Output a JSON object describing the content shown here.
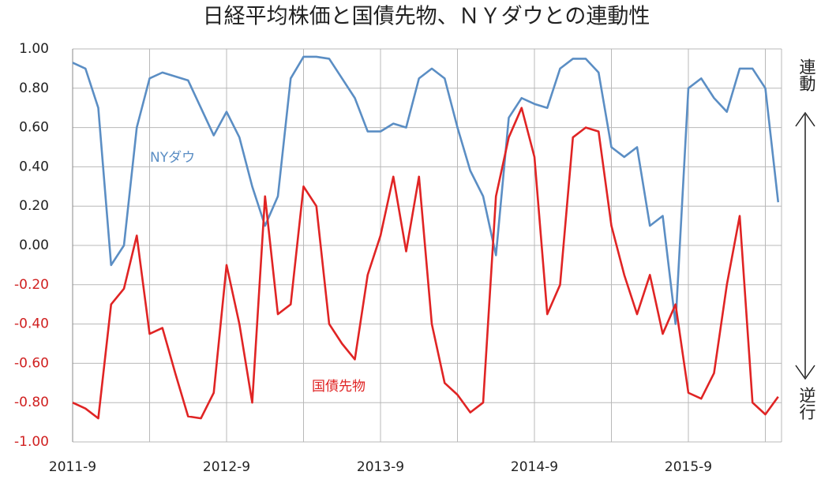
{
  "chart_data": {
    "type": "line",
    "title": "日経平均株価と国債先物、ＮＹダウとの連動性",
    "categories": [
      "2011-9",
      null,
      null,
      null,
      null,
      null,
      null,
      null,
      null,
      null,
      null,
      null,
      "2012-9",
      null,
      null,
      null,
      null,
      null,
      null,
      null,
      null,
      null,
      null,
      null,
      "2013-9",
      null,
      null,
      null,
      null,
      null,
      null,
      null,
      null,
      null,
      null,
      null,
      "2014-9",
      null,
      null,
      null,
      null,
      null,
      null,
      null,
      null,
      null,
      null,
      null,
      "2015-9",
      null,
      null,
      null,
      null,
      null,
      null,
      null
    ],
    "series": [
      {
        "name": "NYダウ",
        "color": "#5b8ec4",
        "values": [
          0.93,
          0.9,
          0.7,
          -0.1,
          0.0,
          0.6,
          0.85,
          0.88,
          0.86,
          0.84,
          0.7,
          0.56,
          0.68,
          0.55,
          0.3,
          0.1,
          0.25,
          0.85,
          0.96,
          0.96,
          0.95,
          0.85,
          0.75,
          0.58,
          0.58,
          0.62,
          0.6,
          0.85,
          0.9,
          0.85,
          0.6,
          0.38,
          0.25,
          -0.05,
          0.65,
          0.75,
          0.72,
          0.7,
          0.9,
          0.95,
          0.95,
          0.88,
          0.5,
          0.45,
          0.5,
          0.1,
          0.15,
          -0.4,
          0.8,
          0.85,
          0.75,
          0.68,
          0.9,
          0.9,
          0.8,
          0.22
        ]
      },
      {
        "name": "国債先物",
        "color": "#e02424",
        "values": [
          -0.8,
          -0.83,
          -0.88,
          -0.3,
          -0.22,
          0.05,
          -0.45,
          -0.42,
          -0.65,
          -0.87,
          -0.88,
          -0.75,
          -0.1,
          -0.4,
          -0.8,
          0.25,
          -0.35,
          -0.3,
          0.3,
          0.2,
          -0.4,
          -0.5,
          -0.58,
          -0.15,
          0.05,
          0.35,
          -0.03,
          0.35,
          -0.4,
          -0.7,
          -0.76,
          -0.85,
          -0.8,
          0.25,
          0.55,
          0.7,
          0.45,
          -0.35,
          -0.2,
          0.55,
          0.6,
          0.58,
          0.1,
          -0.15,
          -0.35,
          -0.15,
          -0.45,
          -0.3,
          -0.75,
          -0.78,
          -0.65,
          -0.2,
          0.15,
          -0.8,
          -0.86,
          -0.77
        ]
      }
    ],
    "ylim": [
      -1,
      1
    ],
    "yticks": [
      {
        "value": 1,
        "label": "1.00"
      },
      {
        "value": 0.8,
        "label": "0.80"
      },
      {
        "value": 0.6,
        "label": "0.60"
      },
      {
        "value": 0.4,
        "label": "0.40"
      },
      {
        "value": 0.2,
        "label": "0.20"
      },
      {
        "value": 0,
        "label": "0.00"
      },
      {
        "value": -0.2,
        "label": "-0.20"
      },
      {
        "value": -0.4,
        "label": "-0.40"
      },
      {
        "value": -0.6,
        "label": "-0.60"
      },
      {
        "value": -0.8,
        "label": "-0.80"
      },
      {
        "value": -1,
        "label": "-1.00"
      }
    ],
    "grid": true,
    "annotations": {
      "top": "連動",
      "bottom": "逆行"
    }
  }
}
